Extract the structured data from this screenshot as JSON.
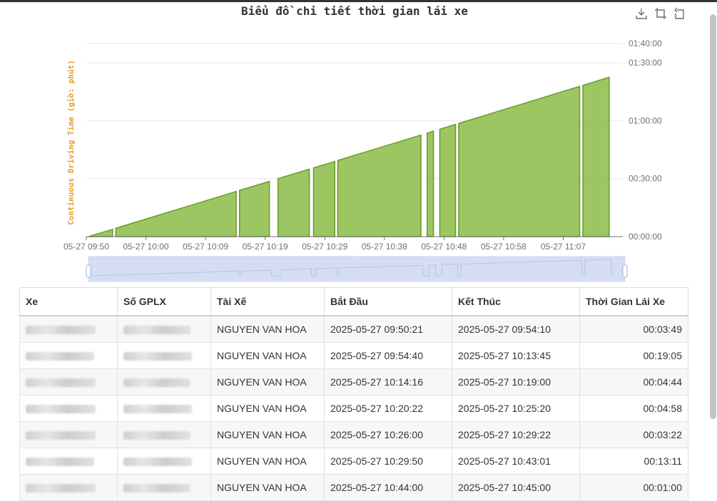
{
  "title": "Biểu đồ chi tiết thời gian lái xe",
  "toolbox": [
    {
      "name": "download-icon",
      "title": "Save as image"
    },
    {
      "name": "zoom-select-icon",
      "title": "Zoom"
    },
    {
      "name": "zoom-reset-icon",
      "title": "Restore"
    }
  ],
  "chart_data": {
    "type": "area",
    "ylabel": "Continuous Driving Time (giờ: phút)",
    "xlabel": "",
    "x_ticks": [
      "05-27 09:50",
      "05-27 10:00",
      "05-27 10:09",
      "05-27 10:19",
      "05-27 10:29",
      "05-27 10:38",
      "05-27 10:48",
      "05-27 10:58",
      "05-27 11:07"
    ],
    "y_ticks": [
      "00:00:00",
      "00:30:00",
      "01:00:00",
      "01:30:00",
      "01:40:00"
    ],
    "ylim_minutes": [
      0,
      100
    ],
    "xlim": [
      "2025-05-27 09:50:00",
      "2025-05-27 11:15:00"
    ],
    "grid": true,
    "color": "#91c050",
    "segments": [
      {
        "start": "2025-05-27 09:50:21",
        "end": "2025-05-27 09:54:10",
        "y_start_min": 0,
        "y_end_min": 3.8
      },
      {
        "start": "2025-05-27 09:54:40",
        "end": "2025-05-27 10:13:45",
        "y_start_min": 4.3,
        "y_end_min": 23.4
      },
      {
        "start": "2025-05-27 10:14:16",
        "end": "2025-05-27 10:19:00",
        "y_start_min": 23.9,
        "y_end_min": 28.6
      },
      {
        "start": "2025-05-27 10:20:22",
        "end": "2025-05-27 10:25:20",
        "y_start_min": 30.0,
        "y_end_min": 34.9
      },
      {
        "start": "2025-05-27 10:26:00",
        "end": "2025-05-27 10:29:22",
        "y_start_min": 35.6,
        "y_end_min": 38.9
      },
      {
        "start": "2025-05-27 10:29:50",
        "end": "2025-05-27 10:43:01",
        "y_start_min": 39.4,
        "y_end_min": 52.6
      },
      {
        "start": "2025-05-27 10:44:00",
        "end": "2025-05-27 10:45:00",
        "y_start_min": 53.6,
        "y_end_min": 54.6
      },
      {
        "start": "2025-05-27 10:46:00",
        "end": "2025-05-27 10:48:30",
        "y_start_min": 55.6,
        "y_end_min": 58.1
      },
      {
        "start": "2025-05-27 10:49:00",
        "end": "2025-05-27 11:08:10",
        "y_start_min": 58.6,
        "y_end_min": 77.8
      },
      {
        "start": "2025-05-27 11:08:40",
        "end": "2025-05-27 11:12:50",
        "y_start_min": 78.3,
        "y_end_min": 82.5
      }
    ]
  },
  "datazoom": {
    "start_percent": 0,
    "end_percent": 100
  },
  "table": {
    "headers": [
      "Xe",
      "Số GPLX",
      "Tài Xế",
      "Bắt Đầu",
      "Kết Thúc",
      "Thời Gian Lái Xe"
    ],
    "rows": [
      {
        "driver": "NGUYEN VAN HOA",
        "start": "2025-05-27 09:50:21",
        "end": "2025-05-27 09:54:10",
        "duration": "00:03:49"
      },
      {
        "driver": "NGUYEN VAN HOA",
        "start": "2025-05-27 09:54:40",
        "end": "2025-05-27 10:13:45",
        "duration": "00:19:05"
      },
      {
        "driver": "NGUYEN VAN HOA",
        "start": "2025-05-27 10:14:16",
        "end": "2025-05-27 10:19:00",
        "duration": "00:04:44"
      },
      {
        "driver": "NGUYEN VAN HOA",
        "start": "2025-05-27 10:20:22",
        "end": "2025-05-27 10:25:20",
        "duration": "00:04:58"
      },
      {
        "driver": "NGUYEN VAN HOA",
        "start": "2025-05-27 10:26:00",
        "end": "2025-05-27 10:29:22",
        "duration": "00:03:22"
      },
      {
        "driver": "NGUYEN VAN HOA",
        "start": "2025-05-27 10:29:50",
        "end": "2025-05-27 10:43:01",
        "duration": "00:13:11"
      },
      {
        "driver": "NGUYEN VAN HOA",
        "start": "2025-05-27 10:44:00",
        "end": "2025-05-27 10:45:00",
        "duration": "00:01:00"
      }
    ]
  }
}
